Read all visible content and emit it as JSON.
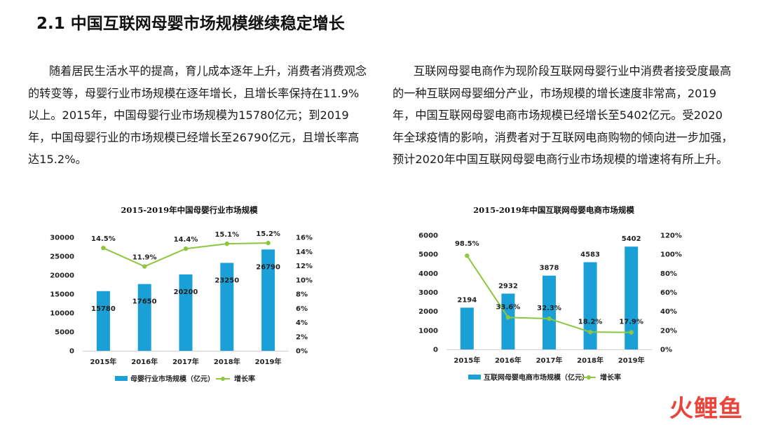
{
  "page": {
    "title": "2.1 中国互联网母婴市场规模继续稳定增长",
    "left_paragraph": "随着居民生活水平的提高，育儿成本逐年上升，消费者消费观念的转变等，母婴行业市场规模在逐年增长，且增长率保持在11.9%以上。2015年，中国母婴行业市场规模为15780亿元；到2019年，中国母婴行业的市场规模已经增长至26790亿元，且增长率高达15.2%。",
    "right_paragraph": "互联网母婴电商作为现阶段互联网母婴行业中消费者接受度最高的一种互联网母婴细分产业，市场规模的增长速度非常高，2019年，中国互联网母婴电商市场规模已经增长至5402亿元。受2020年全球疫情的影响，消费者对于互联网电商购物的倾向进一步加强，预计2020年中国互联网母婴电商行业市场规模的增速将有所上升。",
    "logo": "火鲤鱼"
  },
  "colors": {
    "bar": "#1a9fd7",
    "line": "#8dc63f",
    "logo": "#e8463c"
  },
  "chart_data": [
    {
      "type": "bar",
      "title": "2015-2019年中国母婴行业市场规模",
      "categories": [
        "2015年",
        "2016年",
        "2017年",
        "2018年",
        "2019年"
      ],
      "series": [
        {
          "name": "母婴行业市场规模（亿元）",
          "type": "bar",
          "axis": "left",
          "values": [
            15780,
            17650,
            20200,
            23250,
            26790
          ]
        },
        {
          "name": "增长率",
          "type": "line",
          "axis": "right",
          "values": [
            14.5,
            11.9,
            14.4,
            15.1,
            15.2
          ],
          "labels": [
            "14.5%",
            "11.9%",
            "14.4%",
            "15.1%",
            "15.2%"
          ]
        }
      ],
      "left_axis": {
        "ylim": [
          0,
          30000
        ],
        "ticks": [
          "0",
          "5000",
          "10000",
          "15000",
          "20000",
          "25000",
          "30000"
        ]
      },
      "right_axis": {
        "ylim": [
          0,
          16
        ],
        "ticks": [
          "0%",
          "2%",
          "4%",
          "6%",
          "8%",
          "10%",
          "12%",
          "14%",
          "16%"
        ]
      },
      "grid": false,
      "legend": "bottom"
    },
    {
      "type": "bar",
      "title": "2015-2019年中国互联网母婴电商市场规模",
      "categories": [
        "2015年",
        "2016年",
        "2017年",
        "2018年",
        "2019年"
      ],
      "series": [
        {
          "name": "互联网母婴电商市场规模（亿元）",
          "type": "bar",
          "axis": "left",
          "values": [
            2194,
            2932,
            3878,
            4583,
            5402
          ]
        },
        {
          "name": "增长率",
          "type": "line",
          "axis": "right",
          "values": [
            98.5,
            33.6,
            32.3,
            18.2,
            17.9
          ],
          "labels": [
            "98.5%",
            "33.6%",
            "32.3%",
            "18.2%",
            "17.9%"
          ]
        }
      ],
      "left_axis": {
        "ylim": [
          0,
          6000
        ],
        "ticks": [
          "0",
          "1000",
          "2000",
          "3000",
          "4000",
          "5000",
          "6000"
        ]
      },
      "right_axis": {
        "ylim": [
          0,
          120
        ],
        "ticks": [
          "0%",
          "20%",
          "40%",
          "60%",
          "80%",
          "100%",
          "120%"
        ]
      },
      "grid": false,
      "legend": "bottom"
    }
  ]
}
